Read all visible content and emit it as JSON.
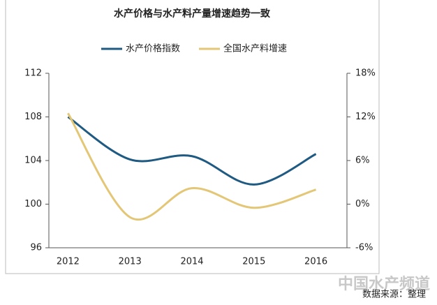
{
  "chart_data": {
    "type": "line",
    "title": "水产价格与水产料产量增速趋势一致",
    "categories": [
      "2012",
      "2013",
      "2014",
      "2015",
      "2016"
    ],
    "series": [
      {
        "name": "水产价格指数",
        "color": "#1f5a82",
        "values": [
          108,
          104.1,
          104.4,
          101.8,
          104.6
        ]
      },
      {
        "name": "全国水产料增速",
        "color": "#e3c676",
        "axis": "y2",
        "values": [
          12.5,
          -1.8,
          2.2,
          -0.5,
          2.0
        ]
      }
    ],
    "ylim": [
      96,
      112
    ],
    "yticks": [
      96,
      100,
      104,
      108,
      112
    ],
    "y2lim": [
      -6,
      18
    ],
    "y2ticks": [
      {
        "value": -6,
        "label": "-6%"
      },
      {
        "value": 0,
        "label": "0%"
      },
      {
        "value": 6,
        "label": "6%"
      },
      {
        "value": 12,
        "label": "12%"
      },
      {
        "value": 18,
        "label": "18%"
      }
    ],
    "legend": "top",
    "source": "数据来源：整理",
    "watermark": "中国水产频道"
  }
}
